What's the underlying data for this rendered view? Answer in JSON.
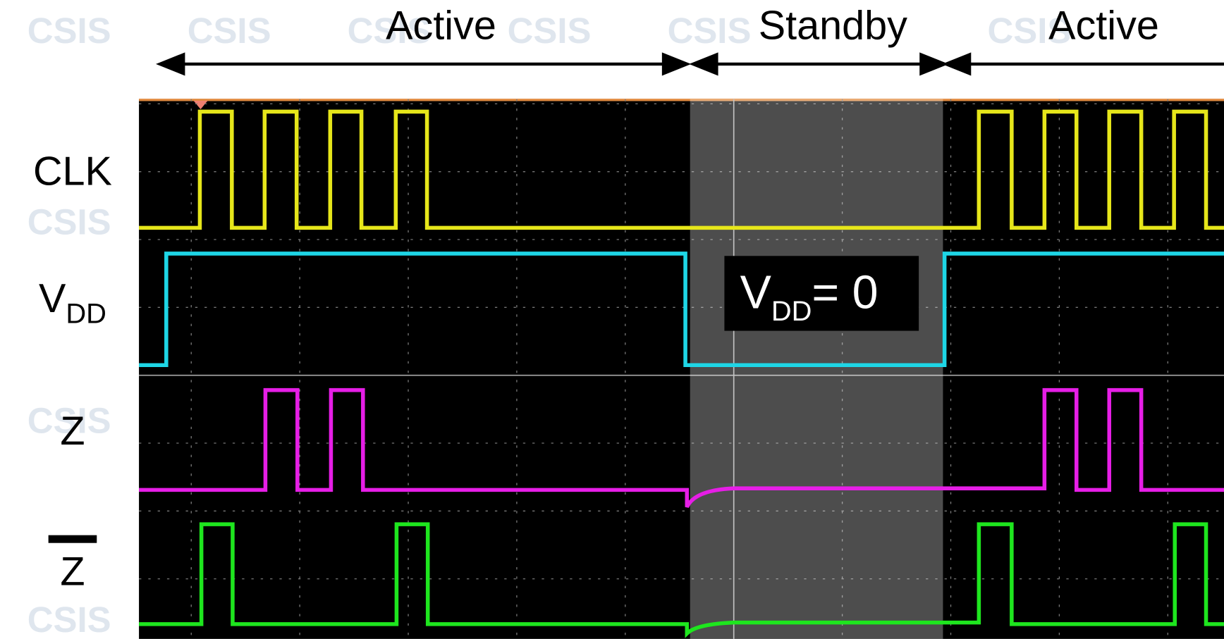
{
  "phases": [
    "Active",
    "Standby",
    "Active"
  ],
  "signals": [
    {
      "label": "CLK"
    },
    {
      "label": "V",
      "subscript": "DD"
    },
    {
      "label": "Z"
    },
    {
      "label": "Z"
    }
  ],
  "annotation": {
    "text": "V",
    "subscript": "DD",
    "suffix": "= 0"
  },
  "watermark": "CSIS"
}
